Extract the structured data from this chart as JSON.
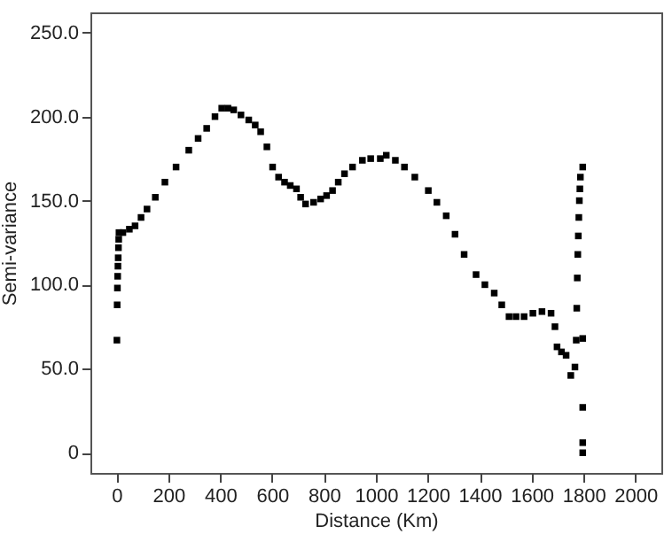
{
  "chart_data": {
    "type": "scatter",
    "xlabel": "Distance (Km)",
    "ylabel": "Semi-variance",
    "marker": "square",
    "grid": false,
    "xlim": [
      -100,
      2100
    ],
    "ylim": [
      -12,
      262
    ],
    "xticks": [
      0,
      200,
      400,
      600,
      800,
      1000,
      1200,
      1400,
      1600,
      1800,
      2000
    ],
    "yticks": [
      0,
      {
        "value": 50,
        "label": "50.0"
      },
      {
        "value": 100,
        "label": "100.0"
      },
      {
        "value": 150,
        "label": "150.0"
      },
      {
        "value": 200,
        "label": "200.0"
      },
      {
        "value": 250,
        "label": "250.0"
      }
    ],
    "series": [
      {
        "color": "#000000",
        "x": [
          2,
          3,
          4,
          5,
          6,
          7,
          8,
          9,
          10,
          25,
          50,
          72,
          95,
          118,
          150,
          187,
          230,
          279,
          315,
          348,
          380,
          406,
          430,
          452,
          480,
          510,
          535,
          556,
          580,
          602,
          625,
          648,
          670,
          694,
          710,
          729,
          760,
          787,
          810,
          833,
          855,
          879,
          910,
          948,
          980,
          1017,
          1040,
          1075,
          1110,
          1150,
          1202,
          1235,
          1271,
          1305,
          1340,
          1386,
          1420,
          1456,
          1485,
          1513,
          1540,
          1571,
          1605,
          1640,
          1675,
          1690,
          1698,
          1715,
          1733,
          1751,
          1767,
          1772,
          1774,
          1776,
          1778,
          1780,
          1782,
          1784,
          1786,
          1788,
          1797,
          1797,
          1797,
          1797,
          1797
        ],
        "values": [
          67,
          88,
          98,
          105,
          111,
          116,
          122,
          127,
          131,
          131,
          133,
          135,
          140,
          145,
          152,
          161,
          170,
          180,
          187,
          193,
          200,
          205,
          205,
          204,
          201,
          198,
          195,
          191,
          182,
          170,
          164,
          161,
          159,
          157,
          152,
          148,
          149,
          151,
          153,
          156,
          161,
          166,
          170,
          174,
          175,
          175,
          177,
          174,
          170,
          164,
          156,
          149,
          141,
          130,
          118,
          106,
          100,
          95,
          88,
          81,
          81,
          81,
          83,
          84,
          83,
          75,
          63,
          60,
          58,
          46,
          51,
          67,
          86,
          104,
          118,
          129,
          140,
          150,
          157,
          164,
          170,
          68,
          27,
          6,
          0
        ]
      }
    ]
  }
}
